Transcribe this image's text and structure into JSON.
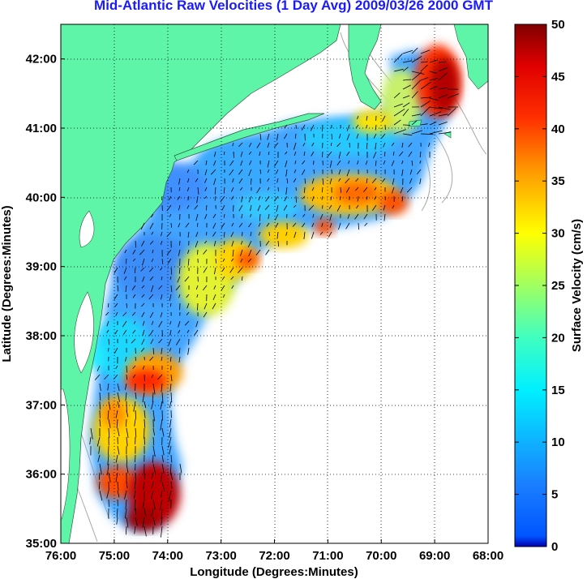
{
  "title": "Mid-Atlantic Raw Velocities (1 Day Avg) 2009/03/26 2000 GMT",
  "map": {
    "xlabel": "Longitude (Degrees:Minutes)",
    "ylabel": "Latitude (Degrees:Minutes)",
    "lon_range": [
      -76,
      -68
    ],
    "lat_range": [
      35,
      42.5
    ],
    "lon_ticks": [
      {
        "value": -76,
        "label": "76:00"
      },
      {
        "value": -75,
        "label": "75:00"
      },
      {
        "value": -74,
        "label": "74:00"
      },
      {
        "value": -73,
        "label": "73:00"
      },
      {
        "value": -72,
        "label": "72:00"
      },
      {
        "value": -71,
        "label": "71:00"
      },
      {
        "value": -70,
        "label": "70:00"
      },
      {
        "value": -69,
        "label": "69:00"
      },
      {
        "value": -68,
        "label": "68:00"
      }
    ],
    "lat_ticks": [
      {
        "value": 35,
        "label": "35:00"
      },
      {
        "value": 36,
        "label": "36:00"
      },
      {
        "value": 37,
        "label": "37:00"
      },
      {
        "value": 38,
        "label": "38:00"
      },
      {
        "value": 39,
        "label": "39:00"
      },
      {
        "value": 40,
        "label": "40:00"
      },
      {
        "value": 41,
        "label": "41:00"
      },
      {
        "value": 42,
        "label": "42:00"
      }
    ],
    "land_color": "#5ff5a8",
    "grid": true
  },
  "colorbar": {
    "label": "Surface Velocity (cm/s)",
    "min": 0,
    "max": 50,
    "ticks": [
      {
        "value": 0,
        "label": "0"
      },
      {
        "value": 5,
        "label": "5"
      },
      {
        "value": 10,
        "label": "10"
      },
      {
        "value": 15,
        "label": "15"
      },
      {
        "value": 20,
        "label": "20"
      },
      {
        "value": 25,
        "label": "25"
      },
      {
        "value": 30,
        "label": "30"
      },
      {
        "value": 35,
        "label": "35"
      },
      {
        "value": 40,
        "label": "40"
      },
      {
        "value": 45,
        "label": "45"
      },
      {
        "value": 50,
        "label": "50"
      }
    ],
    "colormap": "jet"
  }
}
